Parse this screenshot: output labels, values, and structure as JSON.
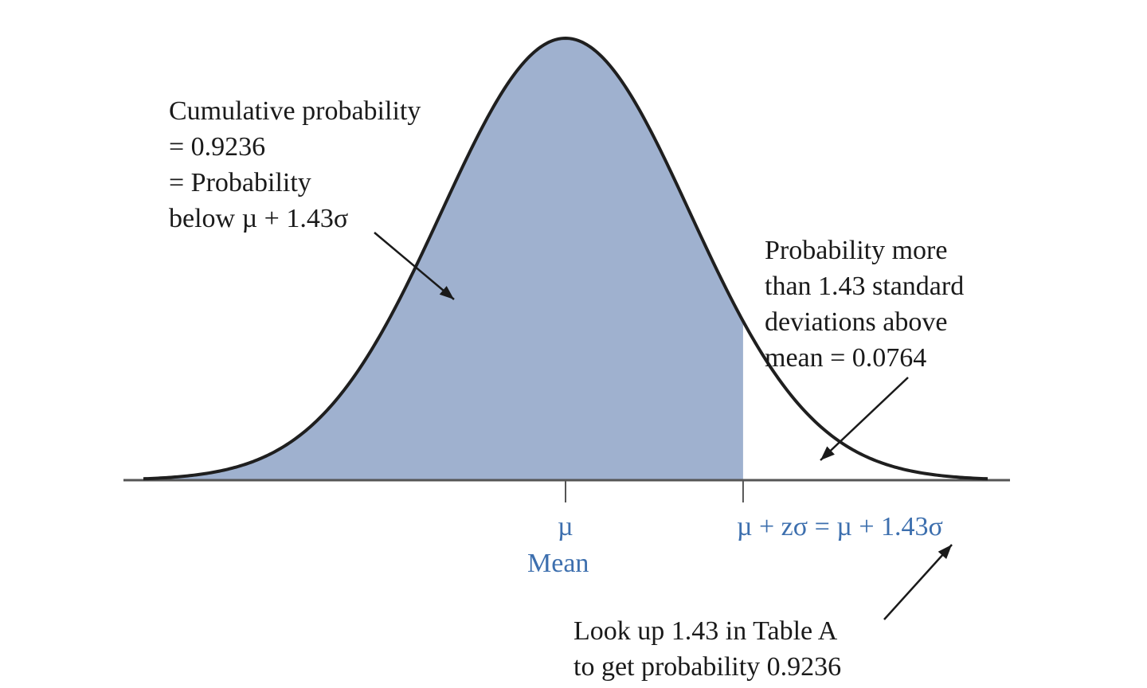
{
  "chart_data": {
    "type": "area",
    "distribution": "normal",
    "xlim": [
      -3.4,
      3.4
    ],
    "mean": 0,
    "sd": 1,
    "shaded_region": {
      "from": -3.4,
      "to": 1.43
    },
    "unshaded_region": {
      "from": 1.43,
      "to": 3.4
    },
    "cumulative_probability": 0.9236,
    "upper_tail_probability": 0.0764,
    "z": 1.43,
    "ticks": [
      {
        "x": 0,
        "label": "µ",
        "sublabel": "Mean"
      },
      {
        "x": 1.43,
        "label": "µ + zσ = µ + 1.43σ"
      }
    ],
    "annotations": {
      "left": [
        "Cumulative probability",
        "= 0.9236",
        "= Probability",
        "below µ + 1.43σ"
      ],
      "right": [
        "Probability more",
        "than 1.43 standard",
        "deviations above",
        "mean = 0.0764"
      ],
      "bottom": [
        "Look up 1.43 in Table A",
        "to get probability 0.9236"
      ]
    },
    "colors": {
      "fill": "#9fb1cf",
      "curve": "#1f1f1f",
      "axis": "#555555",
      "tick_label": "#3d6fae",
      "text": "#1a1a1a"
    }
  }
}
